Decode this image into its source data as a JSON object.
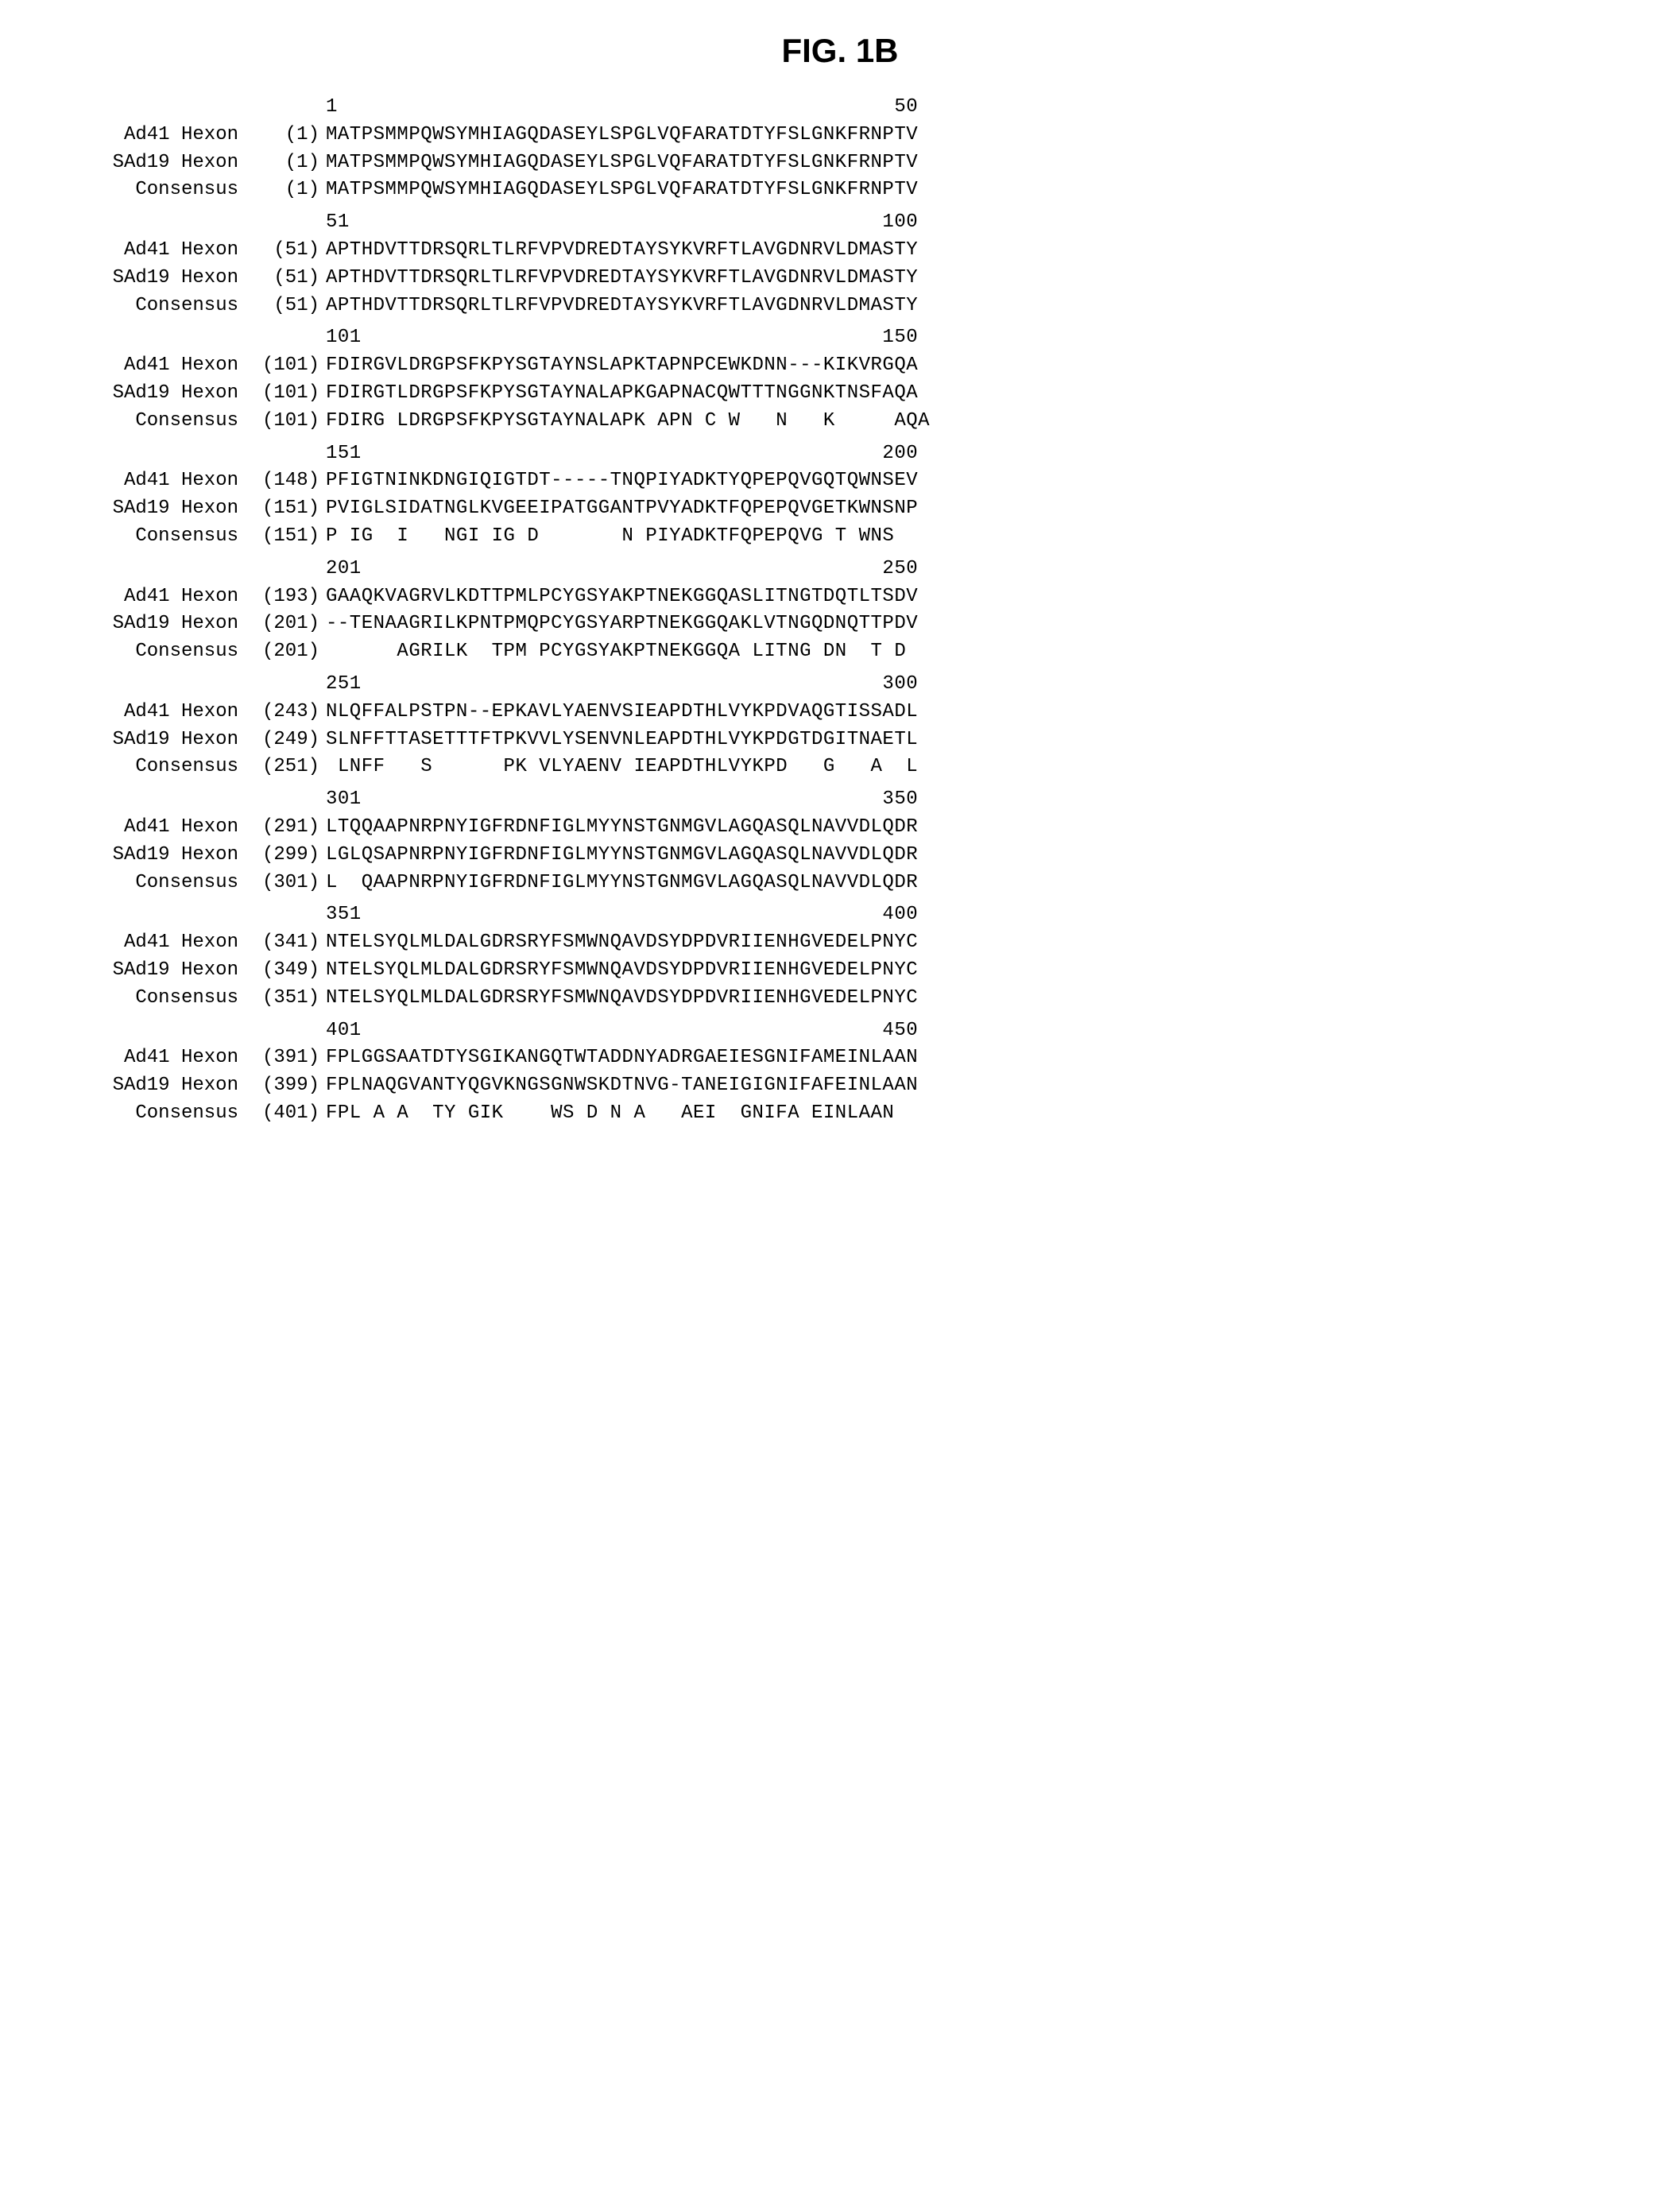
{
  "title": "FIG. 1B",
  "sequence_labels": {
    "ad41": "Ad41 Hexon",
    "sad19": "SAd19 Hexon",
    "consensus": "Consensus"
  },
  "blocks": [
    {
      "ruler_start": "1",
      "ruler_end": "50",
      "ruler_gap": "                                               ",
      "rows": [
        {
          "label": "ad41",
          "pos": "(1)",
          "seq": "MATPSMMPQWSYMHIAGQDASEYLSPGLVQFARATDTYFSLGNKFRNPTV"
        },
        {
          "label": "sad19",
          "pos": "(1)",
          "seq": "MATPSMMPQWSYMHIAGQDASEYLSPGLVQFARATDTYFSLGNKFRNPTV"
        },
        {
          "label": "consensus",
          "pos": "(1)",
          "seq": "MATPSMMPQWSYMHIAGQDASEYLSPGLVQFARATDTYFSLGNKFRNPTV"
        }
      ]
    },
    {
      "ruler_start": "51",
      "ruler_end": "100",
      "ruler_gap": "                                             ",
      "rows": [
        {
          "label": "ad41",
          "pos": "(51)",
          "seq": "APTHDVTTDRSQRLTLRFVPVDREDTAYSYKVRFTLAVGDNRVLDMASTY"
        },
        {
          "label": "sad19",
          "pos": "(51)",
          "seq": "APTHDVTTDRSQRLTLRFVPVDREDTAYSYKVRFTLAVGDNRVLDMASTY"
        },
        {
          "label": "consensus",
          "pos": "(51)",
          "seq": "APTHDVTTDRSQRLTLRFVPVDREDTAYSYKVRFTLAVGDNRVLDMASTY"
        }
      ]
    },
    {
      "ruler_start": "101",
      "ruler_end": "150",
      "ruler_gap": "                                            ",
      "rows": [
        {
          "label": "ad41",
          "pos": "(101)",
          "seq": "FDIRGVLDRGPSFKPYSGTAYNSLAPKTAPNPCEWKDNN---KIKVRGQA"
        },
        {
          "label": "sad19",
          "pos": "(101)",
          "seq": "FDIRGTLDRGPSFKPYSGTAYNALAPKGAPNACQWTTTNGGNKTNSFAQA"
        },
        {
          "label": "consensus",
          "pos": "(101)",
          "seq": "FDIRG LDRGPSFKPYSGTAYNALAPK APN C W   N   K     AQA"
        }
      ]
    },
    {
      "ruler_start": "151",
      "ruler_end": "200",
      "ruler_gap": "                                            ",
      "rows": [
        {
          "label": "ad41",
          "pos": "(148)",
          "seq": "PFIGTNINKDNGIQIGTDT-----TNQPIYADKTYQPEPQVGQTQWNSEV"
        },
        {
          "label": "sad19",
          "pos": "(151)",
          "seq": "PVIGLSIDATNGLKVGEEIPATGGANTPVYADKTFQPEPQVGETKWNSNP"
        },
        {
          "label": "consensus",
          "pos": "(151)",
          "seq": "P IG  I   NGI IG D       N PIYADKTFQPEPQVG T WNS  "
        }
      ]
    },
    {
      "ruler_start": "201",
      "ruler_end": "250",
      "ruler_gap": "                                            ",
      "rows": [
        {
          "label": "ad41",
          "pos": "(193)",
          "seq": "GAAQKVAGRVLKDTTPMLPCYGSYAKPTNEKGGQASLITNGTDQTLTSDV"
        },
        {
          "label": "sad19",
          "pos": "(201)",
          "seq": "--TENAAGRILKPNTPMQPCYGSYARPTNEKGGQAKLVTNGQDNQTTPDV"
        },
        {
          "label": "consensus",
          "pos": "(201)",
          "seq": "      AGRILK  TPM PCYGSYAKPTNEKGGQA LITNG DN  T D "
        }
      ]
    },
    {
      "ruler_start": "251",
      "ruler_end": "300",
      "ruler_gap": "                                            ",
      "rows": [
        {
          "label": "ad41",
          "pos": "(243)",
          "seq": "NLQFFALPSTPN--EPKAVLYAENVSIEAPDTHLVYKPDVAQGTISSADL"
        },
        {
          "label": "sad19",
          "pos": "(249)",
          "seq": "SLNFFTTASETTTFTPKVVLYSENVNLEAPDTHLVYKPDGTDGITNAETL"
        },
        {
          "label": "consensus",
          "pos": "(251)",
          "seq": " LNFF   S      PK VLYAENV IEAPDTHLVYKPD   G   A  L"
        }
      ]
    },
    {
      "ruler_start": "301",
      "ruler_end": "350",
      "ruler_gap": "                                            ",
      "rows": [
        {
          "label": "ad41",
          "pos": "(291)",
          "seq": "LTQQAAPNRPNYIGFRDNFIGLMYYNSTGNMGVLAGQASQLNAVVDLQDR"
        },
        {
          "label": "sad19",
          "pos": "(299)",
          "seq": "LGLQSAPNRPNYIGFRDNFIGLMYYNSTGNMGVLAGQASQLNAVVDLQDR"
        },
        {
          "label": "consensus",
          "pos": "(301)",
          "seq": "L  QAAPNRPNYIGFRDNFIGLMYYNSTGNMGVLAGQASQLNAVVDLQDR"
        }
      ]
    },
    {
      "ruler_start": "351",
      "ruler_end": "400",
      "ruler_gap": "                                            ",
      "rows": [
        {
          "label": "ad41",
          "pos": "(341)",
          "seq": "NTELSYQLMLDALGDRSRYFSMWNQAVDSYDPDVRIIENHGVEDELPNYC"
        },
        {
          "label": "sad19",
          "pos": "(349)",
          "seq": "NTELSYQLMLDALGDRSRYFSMWNQAVDSYDPDVRIIENHGVEDELPNYC"
        },
        {
          "label": "consensus",
          "pos": "(351)",
          "seq": "NTELSYQLMLDALGDRSRYFSMWNQAVDSYDPDVRIIENHGVEDELPNYC"
        }
      ]
    },
    {
      "ruler_start": "401",
      "ruler_end": "450",
      "ruler_gap": "                                            ",
      "rows": [
        {
          "label": "ad41",
          "pos": "(391)",
          "seq": "FPLGGSAATDTYSGIKANGQTWTADDNYADRGAEIESGNIFAMEINLAAN"
        },
        {
          "label": "sad19",
          "pos": "(399)",
          "seq": "FPLNAQGVANTYQGVKNGSGNWSKDTNVG-TANEIGIGNIFAFEINLAAN"
        },
        {
          "label": "consensus",
          "pos": "(401)",
          "seq": "FPL A A  TY GIK    WS D N A   AEI  GNIFA EINLAAN"
        }
      ]
    }
  ]
}
